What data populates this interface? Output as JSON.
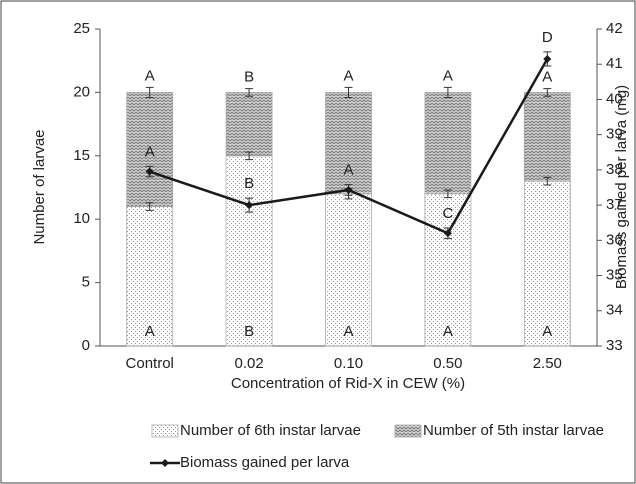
{
  "chart_data": {
    "type": "bar",
    "stacked": true,
    "categories": [
      "Control",
      "0.02",
      "0.10",
      "0.50",
      "2.50"
    ],
    "x_label": "Concentration of Rid-X in CEW (%)",
    "y_label": "Number of larvae",
    "y2_label": "Biomass gained per larva (mg)",
    "ylim": [
      0,
      25
    ],
    "yticks": [
      0,
      5,
      10,
      15,
      20,
      25
    ],
    "y2lim": [
      33,
      42
    ],
    "y2ticks": [
      33,
      34,
      35,
      36,
      37,
      38,
      39,
      40,
      41,
      42
    ],
    "legend": "bottom",
    "series": [
      {
        "name": "Number of 6th instar larvae",
        "pattern": "dots",
        "color": "#9a9a9a",
        "values": [
          11,
          15,
          12,
          12,
          13
        ],
        "errors": [
          0.3,
          0.3,
          0.4,
          0.3,
          0.3
        ],
        "letters": [
          "A",
          "B",
          "A",
          "A",
          "A"
        ]
      },
      {
        "name": "Number of 5th instar larvae",
        "pattern": "zigzag",
        "color": "#7a7a7a",
        "values": [
          9,
          5,
          8,
          8,
          7
        ],
        "errors": [
          0.4,
          0.3,
          0.4,
          0.4,
          0.3
        ],
        "letters": [
          "A",
          "B",
          "A",
          "A",
          "A"
        ]
      },
      {
        "name": "Biomass gained per larva",
        "type": "line",
        "axis": "y2",
        "color": "#1a1a1a",
        "values": [
          37.95,
          37.0,
          37.43,
          36.2,
          41.15
        ],
        "errors": [
          0.15,
          0.2,
          0.15,
          0.15,
          0.2
        ],
        "letters": [
          "A",
          "B",
          "A",
          "C",
          "D"
        ]
      }
    ]
  }
}
